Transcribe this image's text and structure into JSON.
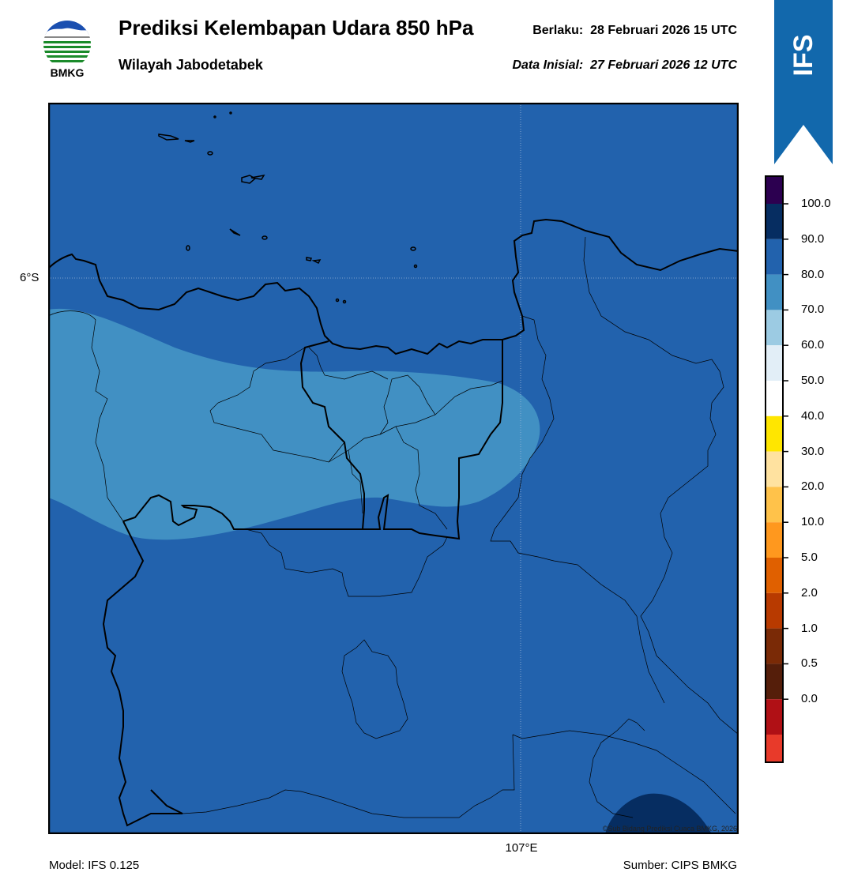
{
  "header": {
    "title": "Prediksi Kelembapan Udara 850 hPa",
    "subtitle": "Wilayah Jabodetabek",
    "valid_label": "Berlaku:  28 Februari 2026 15 UTC",
    "init_label": "Data Inisial:  27 Februari 2026 12 UTC"
  },
  "logo": {
    "text": "BMKG",
    "icon": "bmkg-logo"
  },
  "badge": {
    "text": "IFS",
    "color": "#1268ac"
  },
  "map": {
    "lat_label": "6°S",
    "lon_label": "107°E",
    "credit": "©Sub Bidang Prediksi Cuaca BMKG, 2026",
    "fill_colors": {
      "humid_80_90": "#2262ad",
      "humid_70_80": "#4190c3",
      "humid_90_100": "#062d61"
    }
  },
  "colorbar": {
    "labels": [
      "100.0",
      "90.0",
      "80.0",
      "70.0",
      "60.0",
      "50.0",
      "40.0",
      "30.0",
      "20.0",
      "10.0",
      "5.0",
      "2.0",
      "1.0",
      "0.5",
      "0.0"
    ],
    "colors_top_to_bottom": [
      "#2c0050",
      "#062d61",
      "#2262ad",
      "#4190c3",
      "#9ccbe3",
      "#e2eef7",
      "#ffffff",
      "#ffe600",
      "#ffe2a0",
      "#ffc24a",
      "#ff981e",
      "#e06000",
      "#b83a00",
      "#7a2a06",
      "#551e0a",
      "#b01015",
      "#e83a2a"
    ]
  },
  "footer": {
    "model": "Model: IFS 0.125",
    "source": "Sumber: CIPS BMKG"
  }
}
